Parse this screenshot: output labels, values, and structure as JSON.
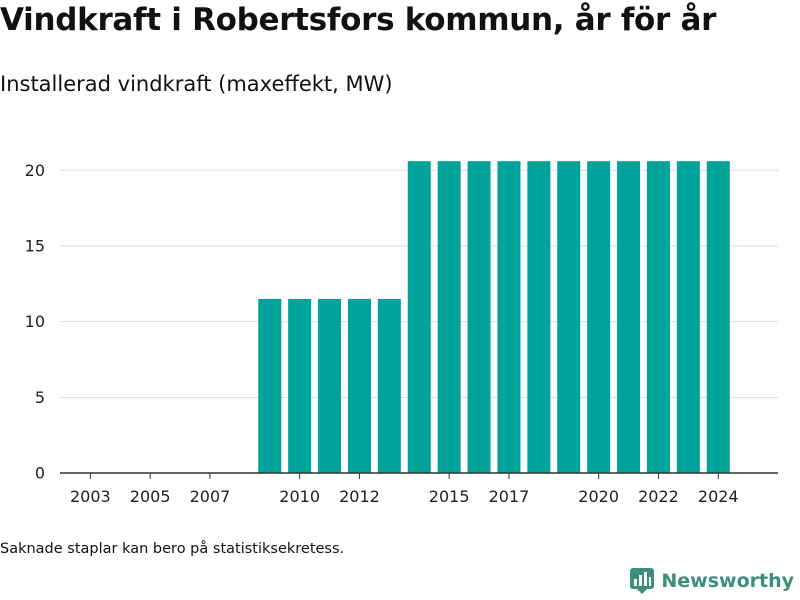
{
  "header": {
    "title": "Vindkraft i Robertsfors kommun, år för år",
    "subtitle": "Installerad vindkraft (maxeffekt, MW)"
  },
  "footer": {
    "note": "Saknade staplar kan bero på statistiksekretess.",
    "brand": "Newsworthy"
  },
  "colors": {
    "bar": "#00a39a",
    "grid": "#dddddd",
    "axis": "#333333",
    "brand": "#3d8f7a"
  },
  "chart_data": {
    "type": "bar",
    "categories": [
      "2002",
      "2003",
      "2004",
      "2005",
      "2006",
      "2007",
      "2008",
      "2009",
      "2010",
      "2011",
      "2012",
      "2013",
      "2014",
      "2015",
      "2016",
      "2017",
      "2018",
      "2019",
      "2020",
      "2021",
      "2022",
      "2023",
      "2024"
    ],
    "values": [
      0,
      0,
      0,
      0,
      0,
      0,
      0,
      11.5,
      11.5,
      11.5,
      11.5,
      11.5,
      20.6,
      20.6,
      20.6,
      20.6,
      20.6,
      20.6,
      20.6,
      20.6,
      20.6,
      20.6,
      20.6
    ],
    "x_tick_labels": [
      "2003",
      "2005",
      "2007",
      "2010",
      "2012",
      "2015",
      "2017",
      "2020",
      "2022",
      "2024"
    ],
    "y_ticks": [
      0,
      5,
      10,
      15,
      20
    ],
    "ylim": [
      0,
      22
    ],
    "grid": true,
    "legend": "none"
  }
}
